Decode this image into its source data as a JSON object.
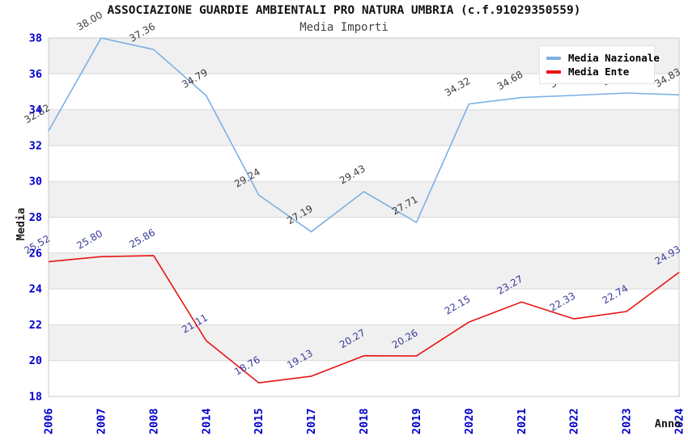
{
  "chart_data": {
    "type": "line",
    "title": "ASSOCIAZIONE GUARDIE AMBIENTALI PRO NATURA UMBRIA (c.f.91029350559)",
    "subtitle": "Media Importi",
    "xlabel": "Anno",
    "ylabel": "Media",
    "ylim": [
      18,
      38
    ],
    "ytick_step": 2,
    "yticks": [
      18,
      20,
      22,
      24,
      26,
      28,
      30,
      32,
      34,
      36,
      38
    ],
    "categories": [
      "2006",
      "2007",
      "2008",
      "2014",
      "2015",
      "2017",
      "2018",
      "2019",
      "2020",
      "2021",
      "2022",
      "2023",
      "2024"
    ],
    "series": [
      {
        "name": "Media Nazionale",
        "color": "#7bb0e4",
        "label_color": "#3c3c3c",
        "values": [
          32.82,
          38.0,
          37.36,
          34.79,
          29.24,
          27.19,
          29.43,
          27.71,
          34.32,
          34.68,
          34.8,
          34.93,
          34.83
        ]
      },
      {
        "name": "Media Ente",
        "color": "#e81414",
        "label_color": "#3a3a9c",
        "values": [
          25.52,
          25.8,
          25.86,
          21.11,
          18.76,
          19.13,
          20.27,
          20.26,
          22.15,
          23.27,
          22.33,
          22.74,
          24.93
        ]
      }
    ],
    "legend_position": "top-right",
    "grid": true,
    "band_color": "#f0f0f0",
    "grid_color": "#d9d9d9",
    "border_color": "#c9c9c9",
    "tick_color": "#0000cc",
    "axis_title_color": "#1a1a1a"
  }
}
